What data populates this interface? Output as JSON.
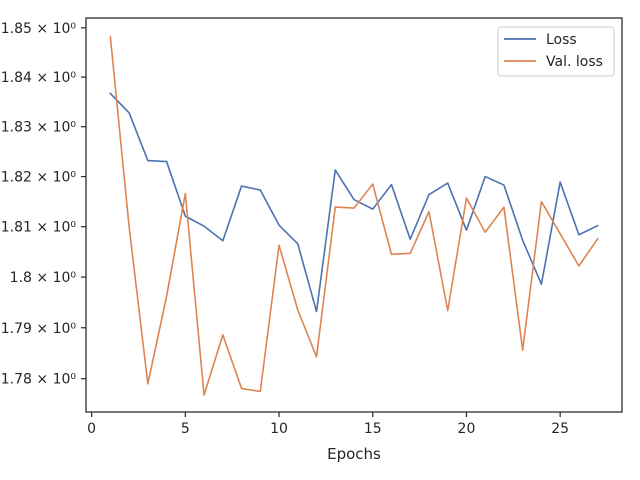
{
  "chart_data": {
    "type": "line",
    "title": "",
    "xlabel": "Epochs",
    "ylabel": "",
    "xlim": [
      -0.3,
      28.3
    ],
    "ylim": [
      1.7735,
      1.852
    ],
    "y_scale": "log",
    "grid": false,
    "legend_position": "top-right",
    "x_ticks": [
      0,
      5,
      10,
      15,
      20,
      25
    ],
    "x_tick_labels": [
      "0",
      "5",
      "10",
      "15",
      "20",
      "25"
    ],
    "y_ticks": [
      1.78,
      1.79,
      1.8,
      1.81,
      1.82,
      1.83,
      1.84,
      1.85
    ],
    "y_tick_labels": [
      "1.78 × 10⁰",
      "1.79 × 10⁰",
      "1.8 × 10⁰",
      "1.81 × 10⁰",
      "1.82 × 10⁰",
      "1.83 × 10⁰",
      "1.84 × 10⁰",
      "1.85 × 10⁰"
    ],
    "x": [
      1,
      2,
      3,
      4,
      5,
      6,
      7,
      8,
      9,
      10,
      11,
      12,
      13,
      14,
      15,
      16,
      17,
      18,
      19,
      20,
      21,
      22,
      23,
      24,
      25,
      26,
      27
    ],
    "series": [
      {
        "name": "Loss",
        "color": "#4c72b0",
        "values": [
          1.8367,
          1.8328,
          1.8232,
          1.823,
          1.8121,
          1.8101,
          1.8072,
          1.8181,
          1.8173,
          1.8103,
          1.8066,
          1.7932,
          1.8213,
          1.8154,
          1.8135,
          1.8184,
          1.8075,
          1.8164,
          1.8187,
          1.8093,
          1.82,
          1.8183,
          1.8073,
          1.7986,
          1.8189,
          1.8084,
          1.8102
        ]
      },
      {
        "name": "Val. loss",
        "color": "#dd8452",
        "values": [
          1.8482,
          1.81,
          1.779,
          1.7962,
          1.8166,
          1.7768,
          1.7886,
          1.7781,
          1.7775,
          1.8063,
          1.7935,
          1.7843,
          1.8139,
          1.8137,
          1.8185,
          1.8045,
          1.8047,
          1.813,
          1.7934,
          1.8157,
          1.8089,
          1.8139,
          1.7856,
          1.815,
          1.8086,
          1.8022,
          1.8076
        ]
      }
    ]
  }
}
